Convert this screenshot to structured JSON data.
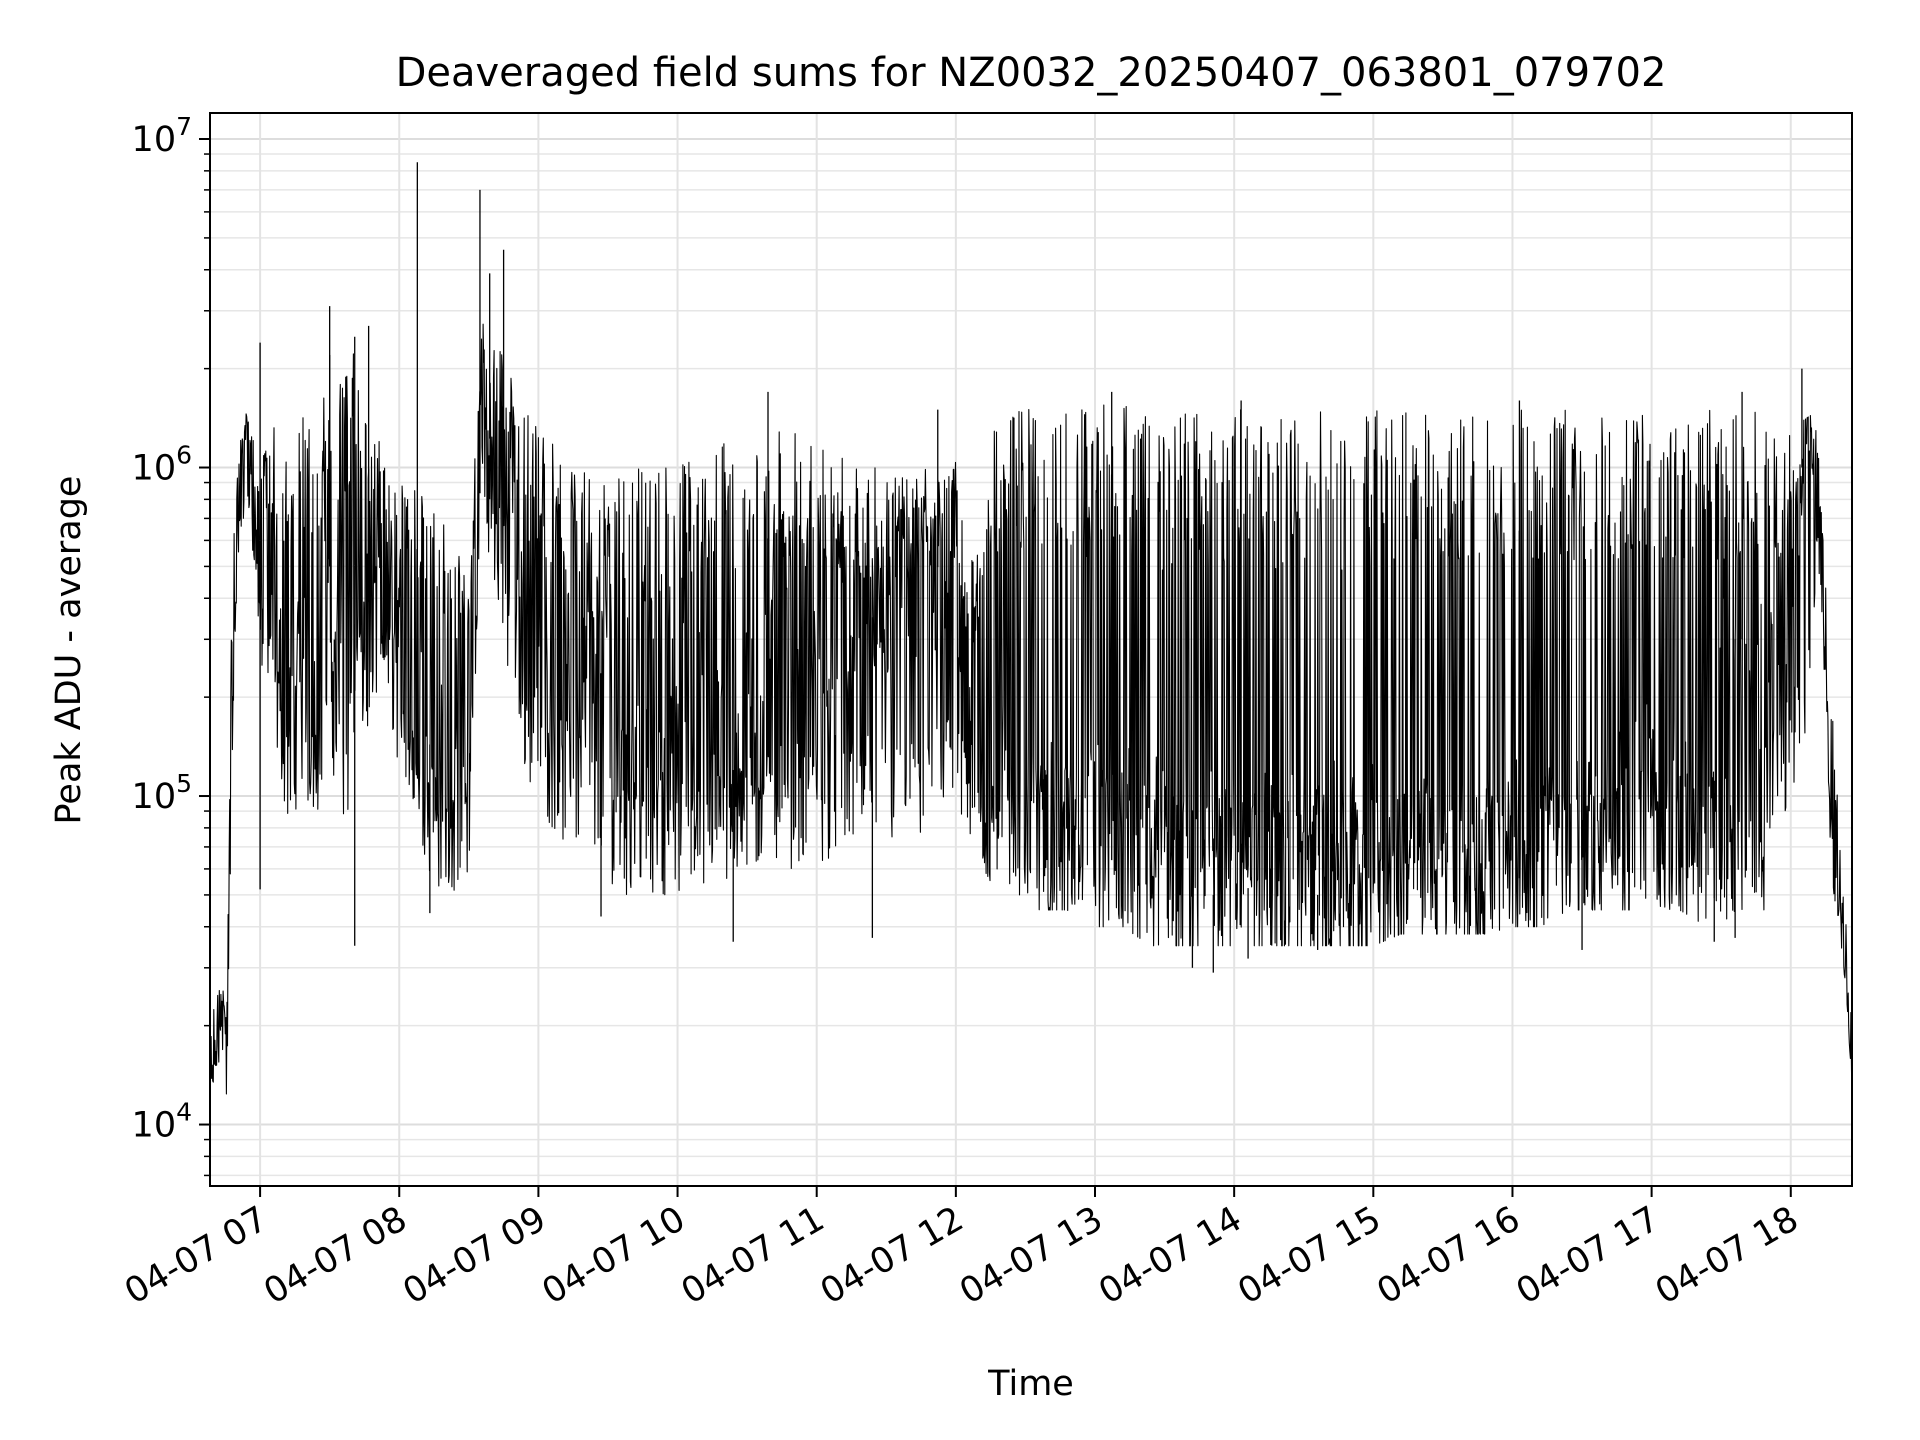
{
  "chart_data": {
    "type": "line",
    "title": "Deaveraged field sums for NZ0032_20250407_063801_079702",
    "xlabel": "Time",
    "ylabel": "Peak ADU - average",
    "yscale": "log",
    "ylim": [
      6500,
      12000000
    ],
    "xlim_hours": [
      6.64,
      18.44
    ],
    "grid": true,
    "legend": "none",
    "line_color": "#000000",
    "x_ticks": [
      {
        "hour": 7,
        "label": "04-07 07"
      },
      {
        "hour": 8,
        "label": "04-07 08"
      },
      {
        "hour": 9,
        "label": "04-07 09"
      },
      {
        "hour": 10,
        "label": "04-07 10"
      },
      {
        "hour": 11,
        "label": "04-07 11"
      },
      {
        "hour": 12,
        "label": "04-07 12"
      },
      {
        "hour": 13,
        "label": "04-07 13"
      },
      {
        "hour": 14,
        "label": "04-07 14"
      },
      {
        "hour": 15,
        "label": "04-07 15"
      },
      {
        "hour": 16,
        "label": "04-07 16"
      },
      {
        "hour": 17,
        "label": "04-07 17"
      },
      {
        "hour": 18,
        "label": "04-07 18"
      }
    ],
    "y_ticks": [
      {
        "value": 10000,
        "base": "10",
        "exp": "4"
      },
      {
        "value": 100000,
        "base": "10",
        "exp": "5"
      },
      {
        "value": 1000000,
        "base": "10",
        "exp": "6"
      },
      {
        "value": 10000000,
        "base": "10",
        "exp": "7"
      }
    ],
    "series": [
      {
        "x_hours": [
          6.64,
          6.68,
          6.72,
          6.76,
          6.8,
          6.84,
          6.88,
          6.92,
          6.96,
          7.0,
          7.1,
          7.2,
          7.3,
          7.4,
          7.5,
          7.6,
          7.7,
          7.8,
          7.9,
          8.0,
          8.1,
          8.2,
          8.3,
          8.4,
          8.5,
          8.6,
          8.7,
          8.8,
          8.9,
          9.0,
          9.2,
          9.4,
          9.6,
          9.8,
          10.0,
          10.2,
          10.4,
          10.6,
          10.8,
          11.0,
          11.2,
          11.4,
          11.6,
          11.8,
          12.0,
          12.1,
          12.2,
          12.3,
          12.4,
          12.5,
          12.6,
          12.7,
          12.8,
          12.9,
          13.0,
          13.2,
          13.4,
          13.6,
          13.8,
          14.0,
          14.2,
          14.4,
          14.6,
          14.8,
          15.0,
          15.2,
          15.4,
          15.6,
          15.8,
          16.0,
          16.2,
          16.4,
          16.6,
          16.8,
          17.0,
          17.2,
          17.4,
          17.6,
          17.8,
          18.0,
          18.1,
          18.2,
          18.3,
          18.36,
          18.4,
          18.44
        ],
        "values": [
          12000,
          17000,
          22000,
          13000,
          150000,
          700000,
          1100000,
          1200000,
          800000,
          600000,
          400000,
          150000,
          300000,
          200000,
          500000,
          250000,
          600000,
          350000,
          500000,
          300000,
          200000,
          150000,
          120000,
          100000,
          80000,
          1500000,
          1000000,
          700000,
          500000,
          400000,
          300000,
          250000,
          200000,
          200000,
          180000,
          150000,
          120000,
          200000,
          300000,
          350000,
          400000,
          350000,
          400000,
          450000,
          600000,
          150000,
          100000,
          90000,
          100000,
          70000,
          60000,
          60000,
          60000,
          65000,
          70000,
          60000,
          55000,
          50000,
          50000,
          50000,
          55000,
          50000,
          50000,
          50000,
          50000,
          50000,
          50000,
          50000,
          50000,
          55000,
          60000,
          70000,
          70000,
          80000,
          90000,
          90000,
          80000,
          300000,
          300000,
          350000,
          1300000,
          1200000,
          70000,
          40000,
          30000,
          12000
        ],
        "upper_envelope": [
          20000,
          25000,
          30000,
          20000,
          600000,
          1200000,
          1500000,
          1500000,
          1300000,
          1300000,
          1400000,
          1100000,
          1500000,
          1300000,
          2000000,
          1800000,
          2500000,
          1500000,
          1200000,
          900000,
          900000,
          800000,
          700000,
          600000,
          500000,
          3000000,
          2500000,
          2000000,
          1500000,
          1300000,
          1100000,
          900000,
          1000000,
          1000000,
          1000000,
          1200000,
          1200000,
          1300000,
          1300000,
          1200000,
          1100000,
          1000000,
          1000000,
          1000000,
          1100000,
          500000,
          800000,
          1500000,
          1500000,
          1500000,
          1600000,
          1600000,
          1500000,
          1500000,
          1600000,
          1600000,
          1500000,
          1500000,
          1500000,
          1500000,
          1500000,
          1500000,
          1500000,
          1500000,
          1500000,
          1500000,
          1500000,
          1500000,
          1500000,
          1500000,
          1500000,
          1500000,
          1500000,
          1500000,
          1500000,
          1500000,
          1500000,
          1500000,
          1500000,
          1300000,
          1400000,
          1500000,
          200000,
          60000,
          40000,
          20000
        ],
        "lower_envelope": [
          11000,
          14000,
          15000,
          12000,
          100000,
          500000,
          700000,
          700000,
          500000,
          250000,
          150000,
          80000,
          100000,
          80000,
          150000,
          60000,
          150000,
          150000,
          200000,
          120000,
          80000,
          60000,
          50000,
          50000,
          60000,
          700000,
          400000,
          200000,
          120000,
          90000,
          70000,
          60000,
          50000,
          50000,
          50000,
          50000,
          50000,
          60000,
          60000,
          60000,
          70000,
          70000,
          70000,
          70000,
          90000,
          60000,
          60000,
          50000,
          50000,
          50000,
          45000,
          45000,
          45000,
          40000,
          40000,
          40000,
          35000,
          35000,
          35000,
          35000,
          35000,
          35000,
          35000,
          35000,
          35000,
          38000,
          38000,
          38000,
          38000,
          40000,
          40000,
          45000,
          45000,
          45000,
          45000,
          45000,
          40000,
          40000,
          40000,
          100000,
          150000,
          500000,
          50000,
          35000,
          25000,
          12000
        ]
      }
    ],
    "spikes": [
      {
        "hour": 7.0,
        "value": 2400000
      },
      {
        "hour": 7.5,
        "value": 2200000
      },
      {
        "hour": 7.5,
        "value": 3100000
      },
      {
        "hour": 7.68,
        "value": 2500000
      },
      {
        "hour": 7.78,
        "value": 2700000
      },
      {
        "hour": 8.13,
        "value": 8500000
      },
      {
        "hour": 8.58,
        "value": 7000000
      },
      {
        "hour": 8.65,
        "value": 3900000
      },
      {
        "hour": 8.75,
        "value": 4600000
      },
      {
        "hour": 10.65,
        "value": 1700000
      },
      {
        "hour": 11.87,
        "value": 1500000
      },
      {
        "hour": 13.12,
        "value": 1700000
      },
      {
        "hour": 14.05,
        "value": 1600000
      },
      {
        "hour": 16.05,
        "value": 1600000
      },
      {
        "hour": 17.65,
        "value": 1700000
      },
      {
        "hour": 18.08,
        "value": 2000000
      }
    ],
    "dips": [
      {
        "hour": 7.0,
        "value": 52000
      },
      {
        "hour": 7.68,
        "value": 35000
      },
      {
        "hour": 8.22,
        "value": 44000
      },
      {
        "hour": 9.45,
        "value": 43000
      },
      {
        "hour": 10.4,
        "value": 36000
      },
      {
        "hour": 11.4,
        "value": 37000
      },
      {
        "hour": 13.7,
        "value": 30000
      },
      {
        "hour": 13.85,
        "value": 29000
      },
      {
        "hour": 14.1,
        "value": 32000
      },
      {
        "hour": 14.6,
        "value": 34000
      },
      {
        "hour": 16.5,
        "value": 34000
      },
      {
        "hour": 17.45,
        "value": 36000
      },
      {
        "hour": 17.6,
        "value": 37000
      }
    ]
  }
}
